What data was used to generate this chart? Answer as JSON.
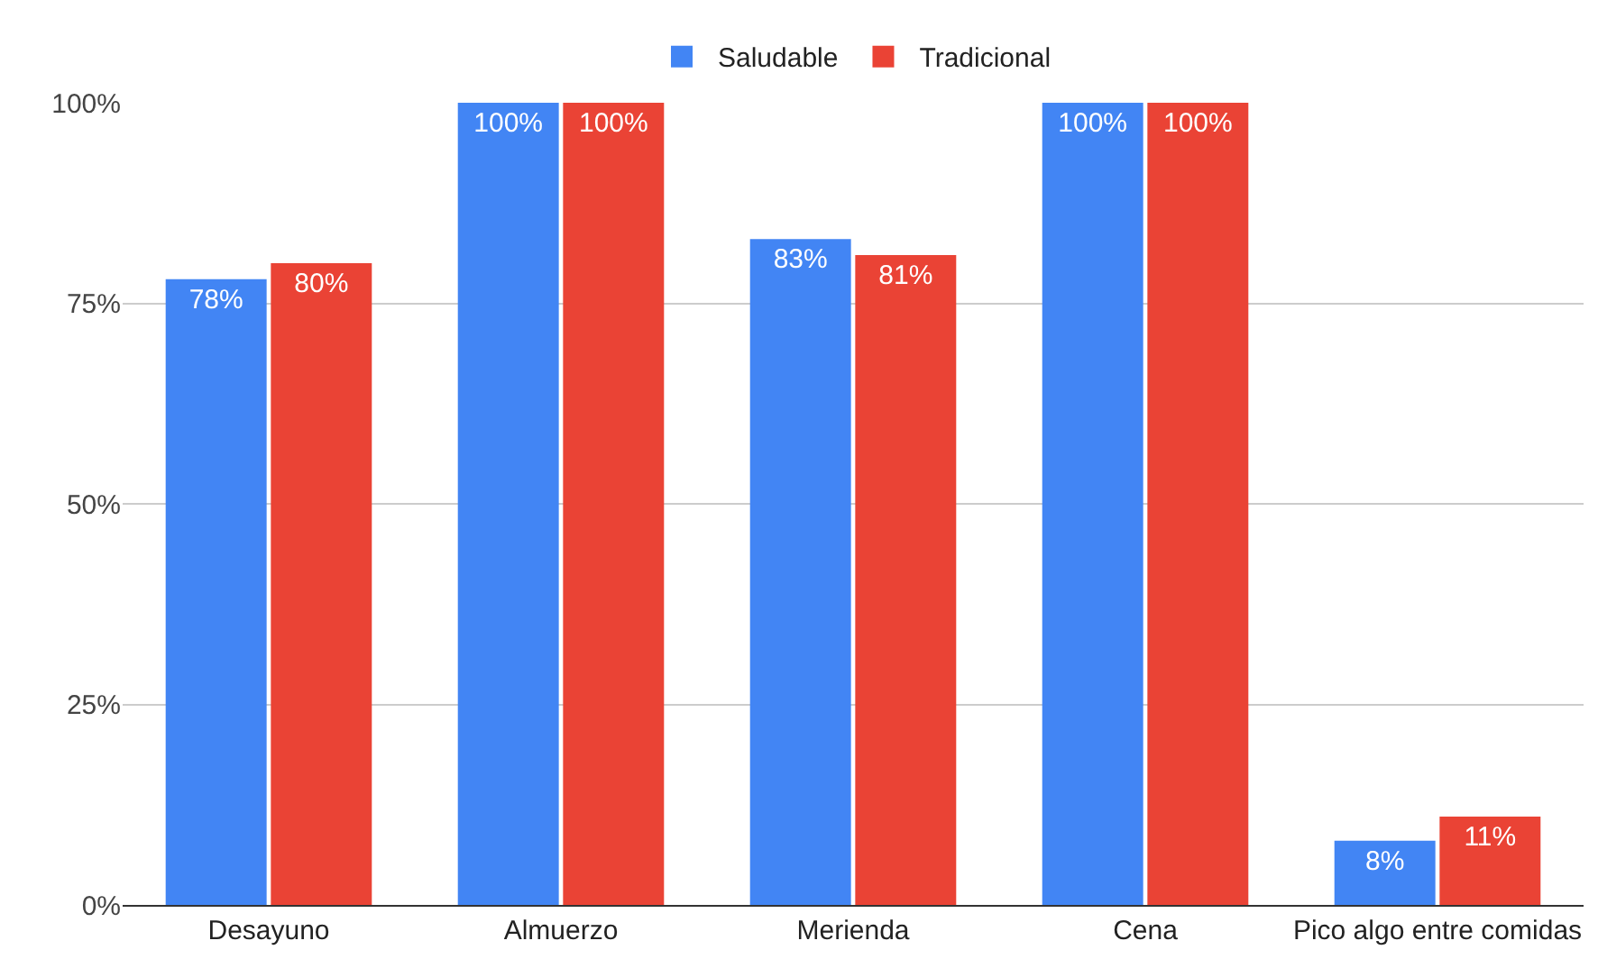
{
  "chart_data": {
    "type": "bar",
    "categories": [
      "Desayuno",
      "Almuerzo",
      "Merienda",
      "Cena",
      "Pico algo entre comidas"
    ],
    "series": [
      {
        "name": "Saludable",
        "color": "#4285f4",
        "values": [
          78,
          100,
          83,
          100,
          8
        ],
        "value_labels": [
          "78%",
          "100%",
          "83%",
          "100%",
          "8%"
        ]
      },
      {
        "name": "Tradicional",
        "color": "#ea4335",
        "values": [
          80,
          100,
          81,
          100,
          11
        ],
        "value_labels": [
          "80%",
          "100%",
          "81%",
          "100%",
          "11%"
        ]
      }
    ],
    "ylim": [
      0,
      100
    ],
    "yticks": [
      {
        "value": 0,
        "label": "0%"
      },
      {
        "value": 25,
        "label": "25%"
      },
      {
        "value": 50,
        "label": "50%"
      },
      {
        "value": 75,
        "label": "75%"
      },
      {
        "value": 100,
        "label": "100%"
      }
    ],
    "grid": "y",
    "legend": "top"
  }
}
